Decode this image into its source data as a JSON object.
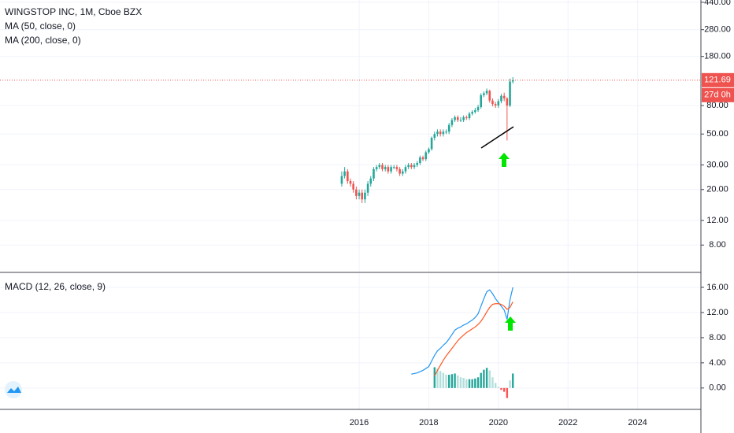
{
  "chart_data": [
    {
      "type": "candlestick",
      "title": "WINGSTOP INC, 1M, Cboe BZX",
      "indicators": [
        "MA (50, close, 0)",
        "MA (200, close, 0)"
      ],
      "countdown": "27d 0h",
      "up_color": "#26a69a",
      "down_color": "#ef5350",
      "log_scale": true,
      "grid": true,
      "x": [
        2015.5,
        2015.583,
        2015.667,
        2015.75,
        2015.833,
        2015.917,
        2016,
        2016.083,
        2016.167,
        2016.25,
        2016.333,
        2016.417,
        2016.5,
        2016.583,
        2016.667,
        2016.75,
        2016.833,
        2016.917,
        2017,
        2017.083,
        2017.167,
        2017.25,
        2017.333,
        2017.417,
        2017.5,
        2017.583,
        2017.667,
        2017.75,
        2017.833,
        2017.917,
        2018,
        2018.083,
        2018.167,
        2018.25,
        2018.333,
        2018.417,
        2018.5,
        2018.583,
        2018.667,
        2018.75,
        2018.833,
        2018.917,
        2019,
        2019.083,
        2019.167,
        2019.25,
        2019.333,
        2019.417,
        2019.5,
        2019.583,
        2019.667,
        2019.75,
        2019.833,
        2019.917,
        2020,
        2020.083,
        2020.167,
        2020.25,
        2020.333,
        2020.417
      ],
      "open": [
        22,
        25,
        27,
        23,
        22,
        20,
        18,
        19,
        17,
        19,
        22,
        24,
        28,
        29,
        30,
        28,
        29,
        27,
        29,
        29,
        28,
        26,
        27,
        29,
        30,
        29,
        30,
        31,
        34,
        33,
        37,
        39,
        47,
        50,
        52,
        50,
        52,
        52,
        58,
        63,
        66,
        63,
        63,
        66,
        65,
        70,
        72,
        74,
        78,
        95,
        98,
        102,
        87,
        82,
        80,
        86,
        94,
        90,
        80,
        119
      ],
      "high": [
        27,
        29,
        28,
        24,
        23,
        21,
        20,
        20,
        20,
        23,
        25,
        29,
        30,
        31,
        31,
        30,
        30,
        30,
        30,
        30,
        29,
        28,
        30,
        31,
        31,
        31,
        32,
        35,
        35,
        38,
        40,
        48,
        52,
        54,
        54,
        54,
        54,
        60,
        65,
        68,
        68,
        66,
        68,
        68,
        72,
        74,
        77,
        81,
        98,
        101,
        106,
        104,
        90,
        85,
        89,
        97,
        99,
        92,
        125,
        128
      ],
      "low": [
        21,
        24,
        22,
        21,
        19,
        17,
        17,
        16,
        16,
        18,
        21,
        23,
        27,
        28,
        27,
        27,
        26,
        26,
        28,
        27,
        25,
        25,
        26,
        28,
        28,
        28,
        29,
        30,
        32,
        32,
        36,
        38,
        45,
        48,
        48,
        48,
        50,
        50,
        56,
        61,
        61,
        61,
        61,
        63,
        63,
        68,
        70,
        72,
        76,
        92,
        95,
        84,
        79,
        77,
        77,
        83,
        86,
        45,
        78,
        115
      ],
      "close": [
        25,
        27,
        23,
        22,
        20,
        18,
        19,
        17,
        19,
        22,
        24,
        28,
        29,
        30,
        28,
        29,
        27,
        29,
        29,
        28,
        26,
        27,
        29,
        30,
        29,
        30,
        31,
        34,
        33,
        37,
        39,
        47,
        50,
        52,
        50,
        52,
        52,
        58,
        63,
        66,
        63,
        63,
        66,
        65,
        70,
        72,
        74,
        78,
        95,
        98,
        102,
        87,
        82,
        80,
        86,
        94,
        90,
        80,
        119,
        121.69
      ],
      "xlim": [
        2005.68,
        2025.82
      ],
      "xticks": [
        2016,
        2018,
        2020,
        2022,
        2024
      ],
      "ylim": [
        5.16,
        457
      ],
      "yticks": [
        {
          "value": 440,
          "label": "440.00"
        },
        {
          "value": 280,
          "label": "280.00"
        },
        {
          "value": 180,
          "label": "180.00"
        },
        {
          "value": 80,
          "label": "80.00"
        },
        {
          "value": 50,
          "label": "50.00"
        },
        {
          "value": 30,
          "label": "30.00"
        },
        {
          "value": 20,
          "label": "20.00"
        },
        {
          "value": 12,
          "label": "12.00"
        },
        {
          "value": 8,
          "label": "8.00"
        }
      ]
    },
    {
      "type": "macd",
      "title": "MACD (12, 26, close, 9)",
      "grid": true,
      "series": [
        {
          "color": "#2196f3",
          "values": [
            null,
            null,
            null,
            null,
            null,
            null,
            null,
            null,
            null,
            null,
            null,
            null,
            null,
            null,
            null,
            null,
            null,
            null,
            null,
            null,
            null,
            null,
            null,
            null,
            2.2,
            2.3,
            2.4,
            2.6,
            2.8,
            3.1,
            3.4,
            4.3,
            5.2,
            5.9,
            6.3,
            6.8,
            7.2,
            7.8,
            8.5,
            9.2,
            9.5,
            9.7,
            10.0,
            10.2,
            10.5,
            10.8,
            11.2,
            11.8,
            13.0,
            14.2,
            15.3,
            15.6,
            15.0,
            14.2,
            13.6,
            13.0,
            12.4,
            10.9,
            14.0,
            16.0
          ]
        },
        {
          "color": "#ff5722",
          "values": [
            null,
            null,
            null,
            null,
            null,
            null,
            null,
            null,
            null,
            null,
            null,
            null,
            null,
            null,
            null,
            null,
            null,
            null,
            null,
            null,
            null,
            null,
            null,
            null,
            null,
            null,
            null,
            null,
            null,
            null,
            null,
            null,
            1.9,
            2.8,
            3.6,
            4.4,
            5.1,
            5.7,
            6.3,
            6.9,
            7.5,
            8.0,
            8.4,
            8.8,
            9.1,
            9.4,
            9.7,
            10.1,
            10.6,
            11.3,
            12.1,
            12.8,
            13.3,
            13.4,
            13.4,
            13.3,
            13.0,
            12.5,
            12.8,
            13.7
          ]
        }
      ],
      "histogram": [
        null,
        null,
        null,
        null,
        null,
        null,
        null,
        null,
        null,
        null,
        null,
        null,
        null,
        null,
        null,
        null,
        null,
        null,
        null,
        null,
        null,
        null,
        null,
        null,
        null,
        null,
        null,
        null,
        null,
        null,
        null,
        null,
        3.3,
        3.1,
        2.7,
        2.4,
        2.1,
        2.1,
        2.2,
        2.3,
        2.0,
        1.7,
        1.6,
        1.4,
        1.4,
        1.4,
        1.5,
        1.7,
        2.4,
        2.9,
        3.2,
        2.8,
        1.7,
        0.8,
        0.2,
        -0.3,
        -0.6,
        -1.6,
        1.2,
        2.3
      ],
      "histogram_colors": [
        "#26a69a",
        "#b2dfdb",
        "#ff5252",
        "#ffcdd2"
      ],
      "ylim": [
        -3.4,
        18.25
      ],
      "yticks": [
        {
          "value": 16,
          "label": "16.00"
        },
        {
          "value": 12,
          "label": "12.00"
        },
        {
          "value": 8,
          "label": "8.00"
        },
        {
          "value": 4,
          "label": "4.00"
        },
        {
          "value": 0,
          "label": "0.00"
        }
      ]
    }
  ]
}
